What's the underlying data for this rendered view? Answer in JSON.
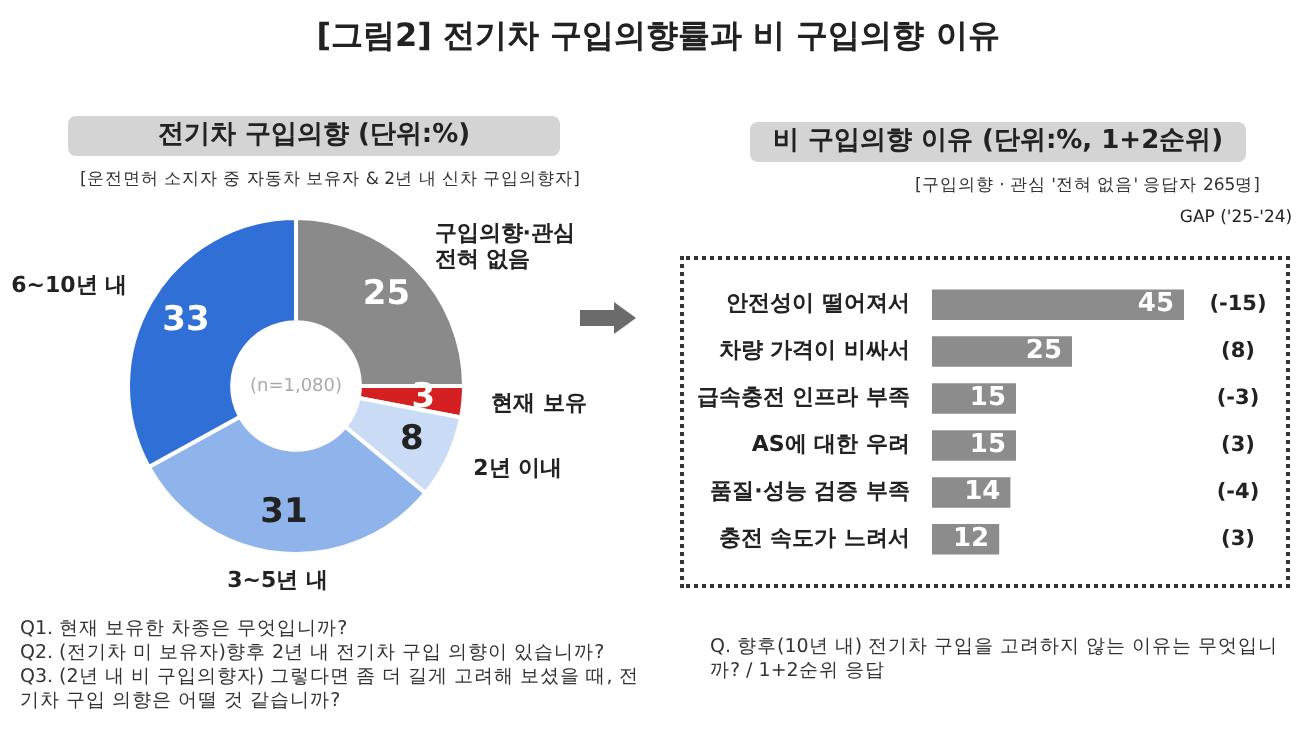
{
  "chart_data": [
    {
      "type": "donut",
      "title": "전기차 구입의향 (단위:%)",
      "subtitle": "[운전면허 소지자 중 자동차 보유자 & 2년 내 신차 구입의향자]",
      "categories": [
        "구입의향·관심 전혀 없음",
        "현재 보유",
        "2년 이내",
        "3~5년 내",
        "6~10년 내"
      ],
      "values": [
        25,
        3,
        8,
        31,
        33
      ],
      "colors": [
        "#8a8a8a",
        "#d42020",
        "#c9dbf5",
        "#8fb4ec",
        "#2f6fd6"
      ],
      "data_labels": true,
      "annotations": [
        "[그림2] 전기차 구입의향률과 비 구입의향 이유",
        "(n=1,080)",
        "Q1. 현재 보유한 차종은 무엇입니까?",
        "Q2. (전기차 미 보유자)향후 2년 내 전기차 구입 의향이 있습니까?",
        "Q3. (2년 내 비 구입의향자) 그렇다면 좀 더 길게 고려해 보셨을 때, 전기차 구입 의향은 어떨 것 같습니까?"
      ]
    },
    {
      "type": "bar",
      "orientation": "horizontal",
      "title": "비 구입의향 이유 (단위:%, 1+2순위)",
      "subtitle": "[구입의향 · 관심 '전혀 없음' 응답자 265명]",
      "categories": [
        "안전성이 떨어져서",
        "차량 가격이 비싸서",
        "급속충전 인프라 부족",
        "AS에 대한 우려",
        "품질·성능 검증 부족",
        "충전 속도가 느려서"
      ],
      "values": [
        45,
        25,
        15,
        15,
        14,
        12
      ],
      "color": "#8c8c8c",
      "data_labels": true,
      "tick_labels": "y",
      "annotations": [
        "GAP ('25-'24)",
        "(-15)",
        "(8)",
        "(-3)",
        "(3)",
        "(-4)",
        "(3)",
        "Q. 향후(10년 내) 전기차 구입을 고려하지 않는 이유는 무엇입니까? / 1+2순위 응답"
      ]
    }
  ]
}
